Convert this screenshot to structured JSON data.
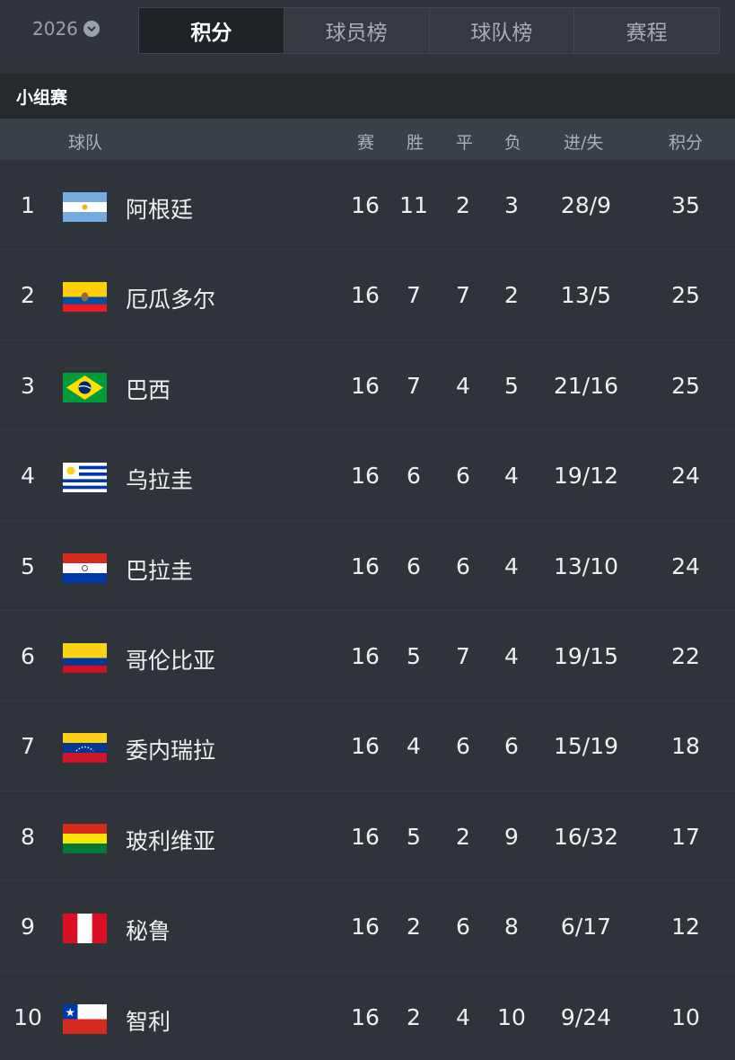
{
  "header": {
    "season": "2026",
    "tabs": [
      {
        "label": "积分",
        "active": true
      },
      {
        "label": "球员榜",
        "active": false
      },
      {
        "label": "球队榜",
        "active": false
      },
      {
        "label": "赛程",
        "active": false
      }
    ]
  },
  "section": {
    "title": "小组赛"
  },
  "columns": {
    "team": "球队",
    "played": "赛",
    "won": "胜",
    "drawn": "平",
    "lost": "负",
    "goals": "进/失",
    "points": "积分"
  },
  "rows": [
    {
      "rank": "1",
      "team": "阿根廷",
      "flag": "argentina-flag-icon",
      "played": "16",
      "won": "11",
      "drawn": "2",
      "lost": "3",
      "goals": "28/9",
      "points": "35"
    },
    {
      "rank": "2",
      "team": "厄瓜多尔",
      "flag": "ecuador-flag-icon",
      "played": "16",
      "won": "7",
      "drawn": "7",
      "lost": "2",
      "goals": "13/5",
      "points": "25"
    },
    {
      "rank": "3",
      "team": "巴西",
      "flag": "brazil-flag-icon",
      "played": "16",
      "won": "7",
      "drawn": "4",
      "lost": "5",
      "goals": "21/16",
      "points": "25"
    },
    {
      "rank": "4",
      "team": "乌拉圭",
      "flag": "uruguay-flag-icon",
      "played": "16",
      "won": "6",
      "drawn": "6",
      "lost": "4",
      "goals": "19/12",
      "points": "24"
    },
    {
      "rank": "5",
      "team": "巴拉圭",
      "flag": "paraguay-flag-icon",
      "played": "16",
      "won": "6",
      "drawn": "6",
      "lost": "4",
      "goals": "13/10",
      "points": "24"
    },
    {
      "rank": "6",
      "team": "哥伦比亚",
      "flag": "colombia-flag-icon",
      "played": "16",
      "won": "5",
      "drawn": "7",
      "lost": "4",
      "goals": "19/15",
      "points": "22"
    },
    {
      "rank": "7",
      "team": "委内瑞拉",
      "flag": "venezuela-flag-icon",
      "played": "16",
      "won": "4",
      "drawn": "6",
      "lost": "6",
      "goals": "15/19",
      "points": "18"
    },
    {
      "rank": "8",
      "team": "玻利维亚",
      "flag": "bolivia-flag-icon",
      "played": "16",
      "won": "5",
      "drawn": "2",
      "lost": "9",
      "goals": "16/32",
      "points": "17"
    },
    {
      "rank": "9",
      "team": "秘鲁",
      "flag": "peru-flag-icon",
      "played": "16",
      "won": "2",
      "drawn": "6",
      "lost": "8",
      "goals": "6/17",
      "points": "12"
    },
    {
      "rank": "10",
      "team": "智利",
      "flag": "chile-flag-icon",
      "played": "16",
      "won": "2",
      "drawn": "4",
      "lost": "10",
      "goals": "9/24",
      "points": "10"
    }
  ]
}
